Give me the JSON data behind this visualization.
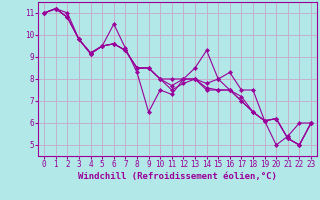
{
  "title": "",
  "xlabel": "Windchill (Refroidissement éolien,°C)",
  "ylabel": "",
  "background_color": "#b2e8e8",
  "grid_color": "#c8a8c8",
  "line_color": "#990099",
  "marker_color": "#990099",
  "xlim": [
    -0.5,
    23.5
  ],
  "ylim": [
    4.5,
    11.5
  ],
  "yticks": [
    5,
    6,
    7,
    8,
    9,
    10,
    11
  ],
  "xticks": [
    0,
    1,
    2,
    3,
    4,
    5,
    6,
    7,
    8,
    9,
    10,
    11,
    12,
    13,
    14,
    15,
    16,
    17,
    18,
    19,
    20,
    21,
    22,
    23
  ],
  "series": [
    [
      11.0,
      11.2,
      11.0,
      9.8,
      9.2,
      9.5,
      10.5,
      9.4,
      8.3,
      6.5,
      7.5,
      7.3,
      8.0,
      8.5,
      9.3,
      8.0,
      8.3,
      7.5,
      7.5,
      6.1,
      5.0,
      5.4,
      6.0,
      6.0
    ],
    [
      11.0,
      11.2,
      10.8,
      9.8,
      9.15,
      9.5,
      9.6,
      9.3,
      8.5,
      8.5,
      8.0,
      8.0,
      8.0,
      8.0,
      7.8,
      8.0,
      7.5,
      7.2,
      6.5,
      6.1,
      6.2,
      5.3,
      5.0,
      6.0
    ],
    [
      11.0,
      11.2,
      10.8,
      9.8,
      9.15,
      9.5,
      9.6,
      9.3,
      8.5,
      8.5,
      8.0,
      7.7,
      8.0,
      8.0,
      7.6,
      7.5,
      7.5,
      7.0,
      6.5,
      6.1,
      6.2,
      5.3,
      5.0,
      6.0
    ],
    [
      11.0,
      11.2,
      10.8,
      9.8,
      9.15,
      9.5,
      9.6,
      9.3,
      8.5,
      8.5,
      8.0,
      7.5,
      7.8,
      8.0,
      7.5,
      7.5,
      7.5,
      7.0,
      6.5,
      6.1,
      6.2,
      5.3,
      5.0,
      6.0
    ]
  ],
  "xlabel_fontsize": 6.5,
  "tick_fontsize": 5.5,
  "figsize": [
    3.2,
    2.0
  ],
  "dpi": 100
}
